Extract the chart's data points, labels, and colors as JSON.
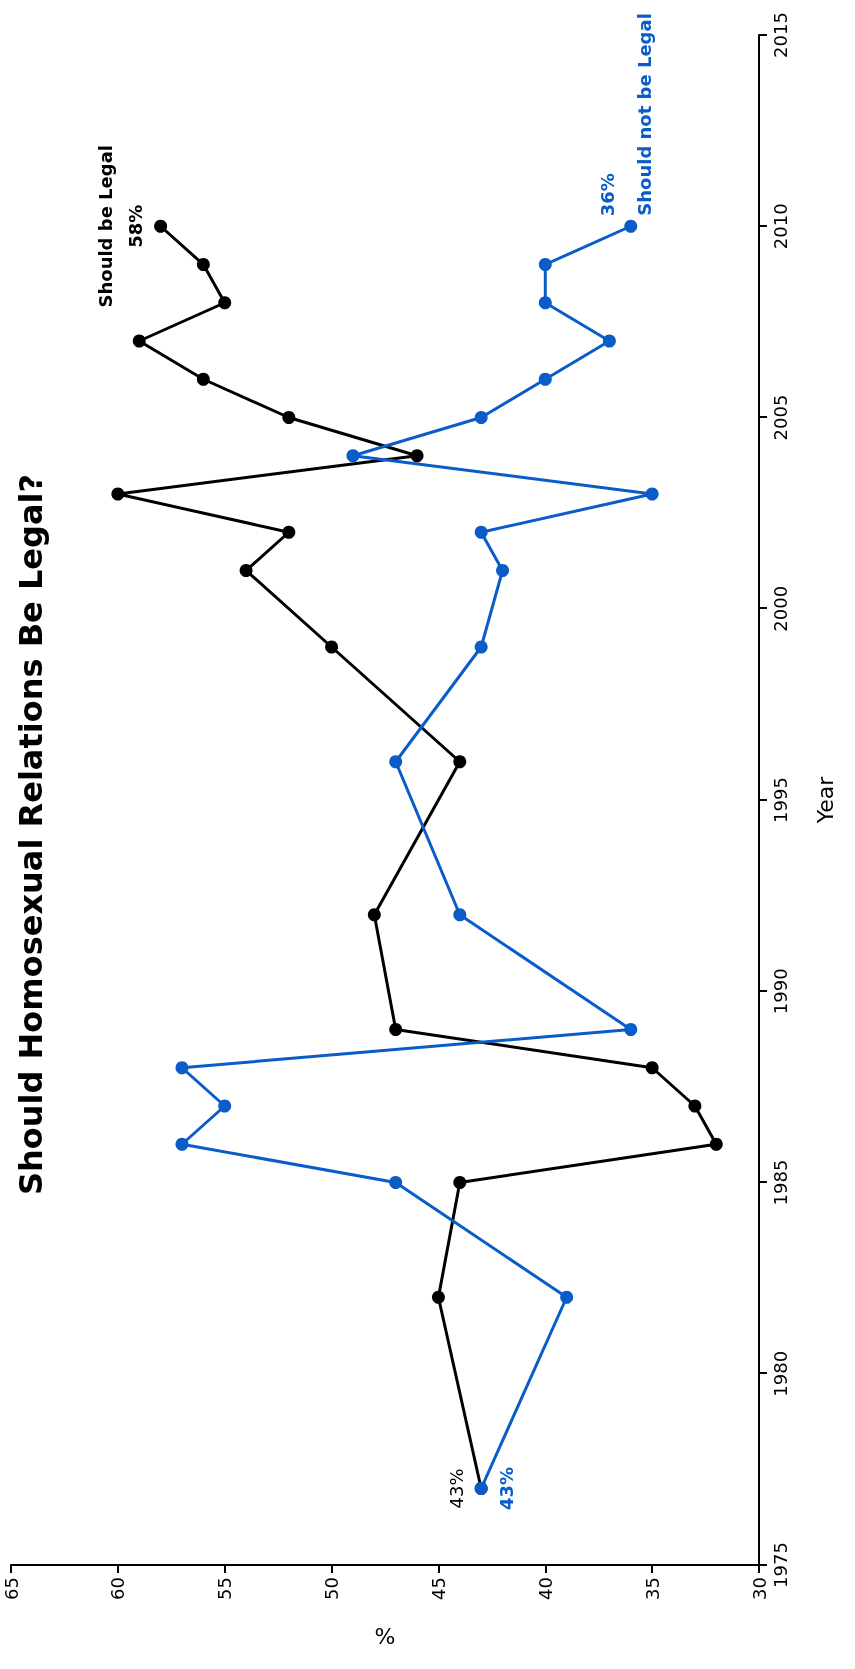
{
  "chart_data": {
    "type": "line",
    "title": "Should Homosexual Relations Be Legal?",
    "xlabel": "%",
    "ylabel": "Year",
    "series": [
      {
        "name": "Should be Legal",
        "color": "#000000",
        "x": [
          43,
          45,
          44,
          32,
          33,
          35,
          47,
          48,
          44,
          50,
          54,
          52,
          60,
          46,
          52,
          56,
          59,
          55,
          56,
          58
        ],
        "values": [
          1977,
          1982,
          1985,
          1986,
          1987,
          1988,
          1989,
          1992,
          1996,
          1999,
          2001,
          2002,
          2003,
          2004,
          2005,
          2006,
          2007,
          2008,
          2009,
          2010
        ]
      },
      {
        "name": "Should not be Legal",
        "color": "#0a5cc8",
        "x": [
          43,
          39,
          47,
          57,
          55,
          57,
          36,
          44,
          47,
          43,
          42,
          43,
          35,
          49,
          43,
          40,
          37,
          40,
          40,
          36
        ],
        "values": [
          1977,
          1982,
          1985,
          1986,
          1987,
          1988,
          1989,
          1992,
          1996,
          1999,
          2001,
          2002,
          2003,
          2004,
          2005,
          2006,
          2007,
          2008,
          2009,
          2010
        ]
      }
    ],
    "annotations": [
      {
        "text": "43%",
        "x": 43,
        "y": 1977
      },
      {
        "text": "43%",
        "x": 43,
        "y": 1977
      },
      {
        "text": "58%",
        "x": 58,
        "y": 2010
      },
      {
        "text": "36%",
        "x": 36,
        "y": 2010
      }
    ],
    "xlim": [
      65,
      30
    ],
    "xticks": [
      65,
      60,
      55,
      50,
      45,
      40,
      35,
      30
    ],
    "ylim": [
      1975,
      2015
    ],
    "yticks": [
      1975,
      1980,
      1985,
      1990,
      1995,
      2000,
      2005,
      2010,
      2015
    ],
    "marker": "circle",
    "line_style": "solid",
    "grid": false,
    "legend": false
  }
}
